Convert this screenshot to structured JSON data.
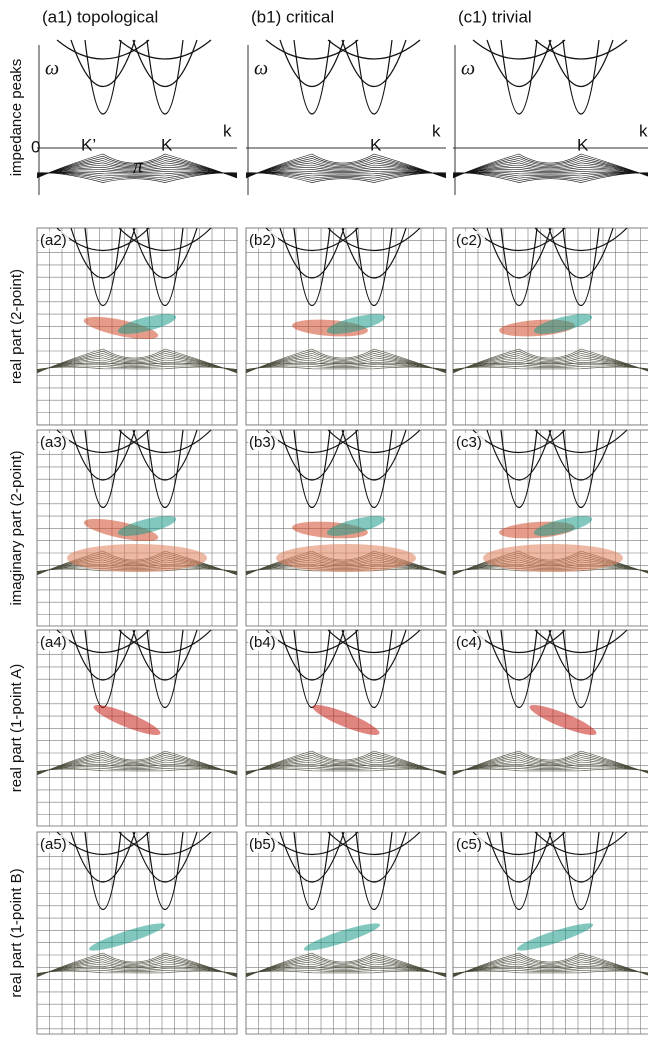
{
  "columns": [
    {
      "header": "(a1) topological",
      "panels": [
        "(a2)",
        "(a3)",
        "(a4)",
        "(a5)"
      ]
    },
    {
      "header": "(b1) critical",
      "panels": [
        "(b2)",
        "(b3)",
        "(b4)",
        "(b5)"
      ]
    },
    {
      "header": "(c1) trivial",
      "panels": [
        "(c2)",
        "(c3)",
        "(c4)",
        "(c5)"
      ]
    }
  ],
  "rows": [
    "impedance peaks",
    "real part (2-point)",
    "imaginary part (2-point)",
    "real part (1-point A)",
    "real part (1-point B)"
  ],
  "top_labels": {
    "omega": "ω",
    "k": "k",
    "k_prime": "K’",
    "k_point": "K",
    "pi": "π",
    "zero": "0"
  }
}
